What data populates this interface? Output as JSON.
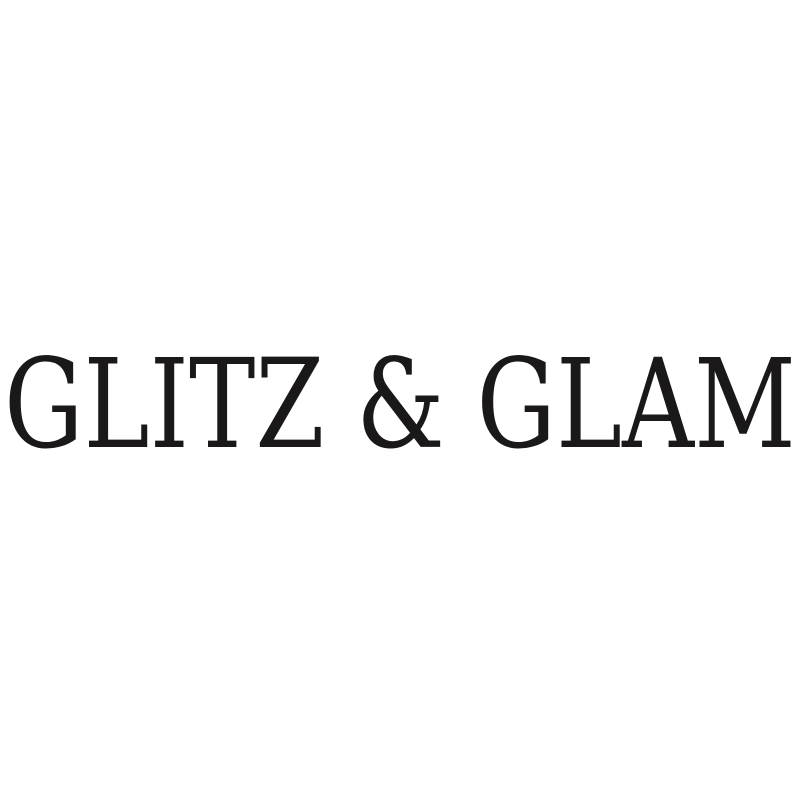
{
  "logo": {
    "text": "GLITZ & GLAM",
    "color": "#1a1818",
    "background": "#ffffff"
  }
}
